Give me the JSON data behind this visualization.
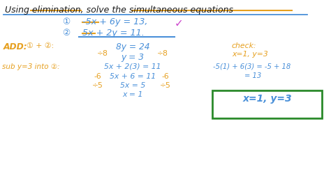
{
  "bg_color": "#ffffff",
  "blue": "#4a90d9",
  "orange": "#e6a020",
  "dark": "#1a1a1a",
  "magenta": "#cc44cc",
  "green_box": "#2a8a2a",
  "title": "Using elimination, solve the simultaneous equations",
  "eq1_circle": "①",
  "eq2_circle": "②",
  "eq1": "-5x + 6y = 13,",
  "eq2": "5x + 2y = 11.",
  "step1": "8y = 24",
  "div8_left": "÷8",
  "div8_right": "÷8",
  "step2": "y = 3",
  "sub1": "5x + 2(3) = 11",
  "sub2": "5x + 6 = 11",
  "neg6_left": "-6",
  "neg6_right": "-6",
  "sub3": "5x = 5",
  "div5_left": "÷5",
  "div5_right": "÷5",
  "sub4": "x = 1",
  "check_label": "check:",
  "check_vals": "x=1, y=3",
  "check_calc1": "-5(1) + 6(3) = -5 + 18",
  "check_calc2": "= 13",
  "final_ans": "x=1, y=3",
  "tick": "✓"
}
